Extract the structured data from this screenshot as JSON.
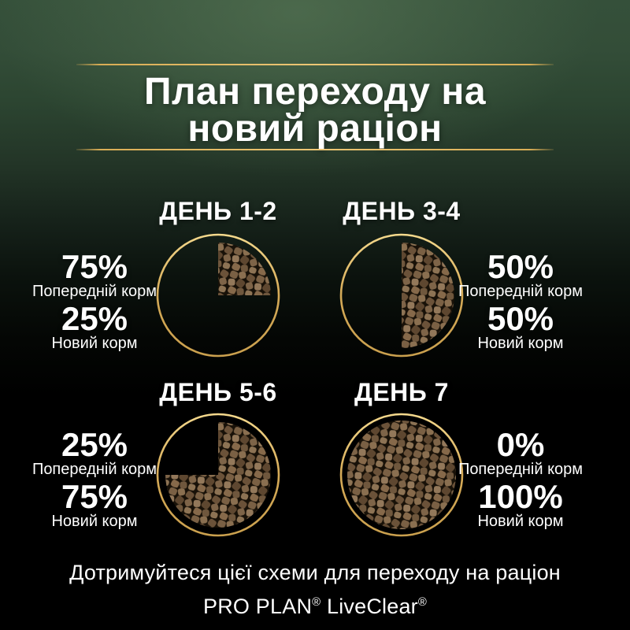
{
  "page": {
    "title_line1": "План переходу на",
    "title_line2": "новий раціон",
    "footer_line1": "Дотримуйтеся цієї схеми для переходу на раціон",
    "footer_line2": "PRO PLAN® LiveClear®"
  },
  "colors": {
    "gold_line": "#d9ad55",
    "ring_gold_light": "#f4d88c",
    "ring_gold_dark": "#caa04e",
    "background_green_top": "#35503a",
    "background_bottom": "#000000",
    "text": "#ffffff",
    "kibble_browns": [
      "#93785a",
      "#8a6f50",
      "#7a6044",
      "#6b5239",
      "#5e4730"
    ]
  },
  "days": [
    {
      "heading": "ДЕНЬ 1-2",
      "prev_pct": "75%",
      "prev_label": "Попередній корм",
      "new_pct": "25%",
      "new_label": "Новий корм"
    },
    {
      "heading": "ДЕНЬ 3-4",
      "prev_pct": "50%",
      "prev_label": "Попередній корм",
      "new_pct": "50%",
      "new_label": "Новий корм"
    },
    {
      "heading": "ДЕНЬ 5-6",
      "prev_pct": "25%",
      "prev_label": "Попередній корм",
      "new_pct": "75%",
      "new_label": "Новий корм"
    },
    {
      "heading": "ДЕНЬ 7",
      "prev_pct": "0%",
      "prev_label": "Попередній корм",
      "new_pct": "100%",
      "new_label": "Новий корм"
    }
  ],
  "chart_data": [
    {
      "type": "pie",
      "title": "ДЕНЬ 1-2",
      "slices": [
        {
          "label": "Попередній корм",
          "value": 75
        },
        {
          "label": "Новий корм",
          "value": 25
        }
      ],
      "layout": {
        "filled_slice": "Новий корм",
        "fill_texture": "kibble-photo",
        "start": "12 o'clock",
        "direction": "clockwise",
        "outline": "gold-ring"
      }
    },
    {
      "type": "pie",
      "title": "ДЕНЬ 3-4",
      "slices": [
        {
          "label": "Попередній корм",
          "value": 50
        },
        {
          "label": "Новий корм",
          "value": 50
        }
      ],
      "layout": {
        "filled_slice": "Новий корм",
        "fill_texture": "kibble-photo",
        "start": "12 o'clock",
        "direction": "clockwise",
        "outline": "gold-ring"
      }
    },
    {
      "type": "pie",
      "title": "ДЕНЬ 5-6",
      "slices": [
        {
          "label": "Попередній корм",
          "value": 25
        },
        {
          "label": "Новий корм",
          "value": 75
        }
      ],
      "layout": {
        "filled_slice": "Новий корм",
        "fill_texture": "kibble-photo",
        "start": "12 o'clock",
        "direction": "clockwise",
        "outline": "gold-ring"
      }
    },
    {
      "type": "pie",
      "title": "ДЕНЬ 7",
      "slices": [
        {
          "label": "Попередній корм",
          "value": 0
        },
        {
          "label": "Новий корм",
          "value": 100
        }
      ],
      "layout": {
        "filled_slice": "Новий корм",
        "fill_texture": "kibble-photo",
        "start": "12 o'clock",
        "direction": "clockwise",
        "outline": "gold-ring"
      }
    }
  ]
}
